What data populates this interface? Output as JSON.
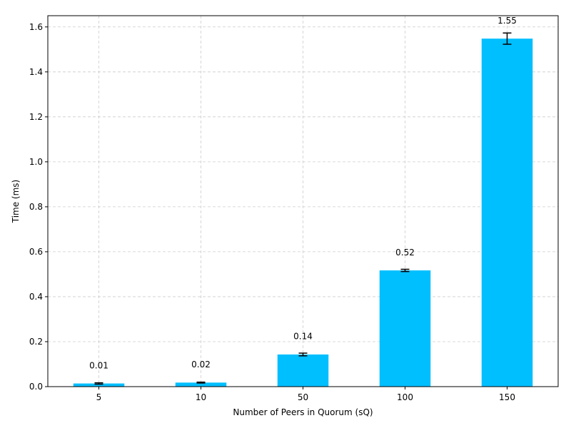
{
  "chart_data": {
    "type": "bar",
    "title": "",
    "xlabel": "Number of Peers in Quorum (sQ)",
    "ylabel": "Time (ms)",
    "categories": [
      "5",
      "10",
      "50",
      "100",
      "150"
    ],
    "values": [
      0.014,
      0.018,
      0.143,
      0.517,
      1.548
    ],
    "errors": [
      0.003,
      0.002,
      0.006,
      0.005,
      0.025
    ],
    "data_labels": [
      "0.01",
      "0.02",
      "0.14",
      "0.52",
      "1.55"
    ],
    "ylim": [
      0,
      1.65
    ],
    "yticks": [
      0.0,
      0.2,
      0.4,
      0.6,
      0.8,
      1.0,
      1.2,
      1.4,
      1.6
    ],
    "ytick_labels": [
      "0.0",
      "0.2",
      "0.4",
      "0.6",
      "0.8",
      "1.0",
      "1.2",
      "1.4",
      "1.6"
    ],
    "grid": true,
    "bar_color": "#00bfff",
    "error_color": "#000000"
  }
}
